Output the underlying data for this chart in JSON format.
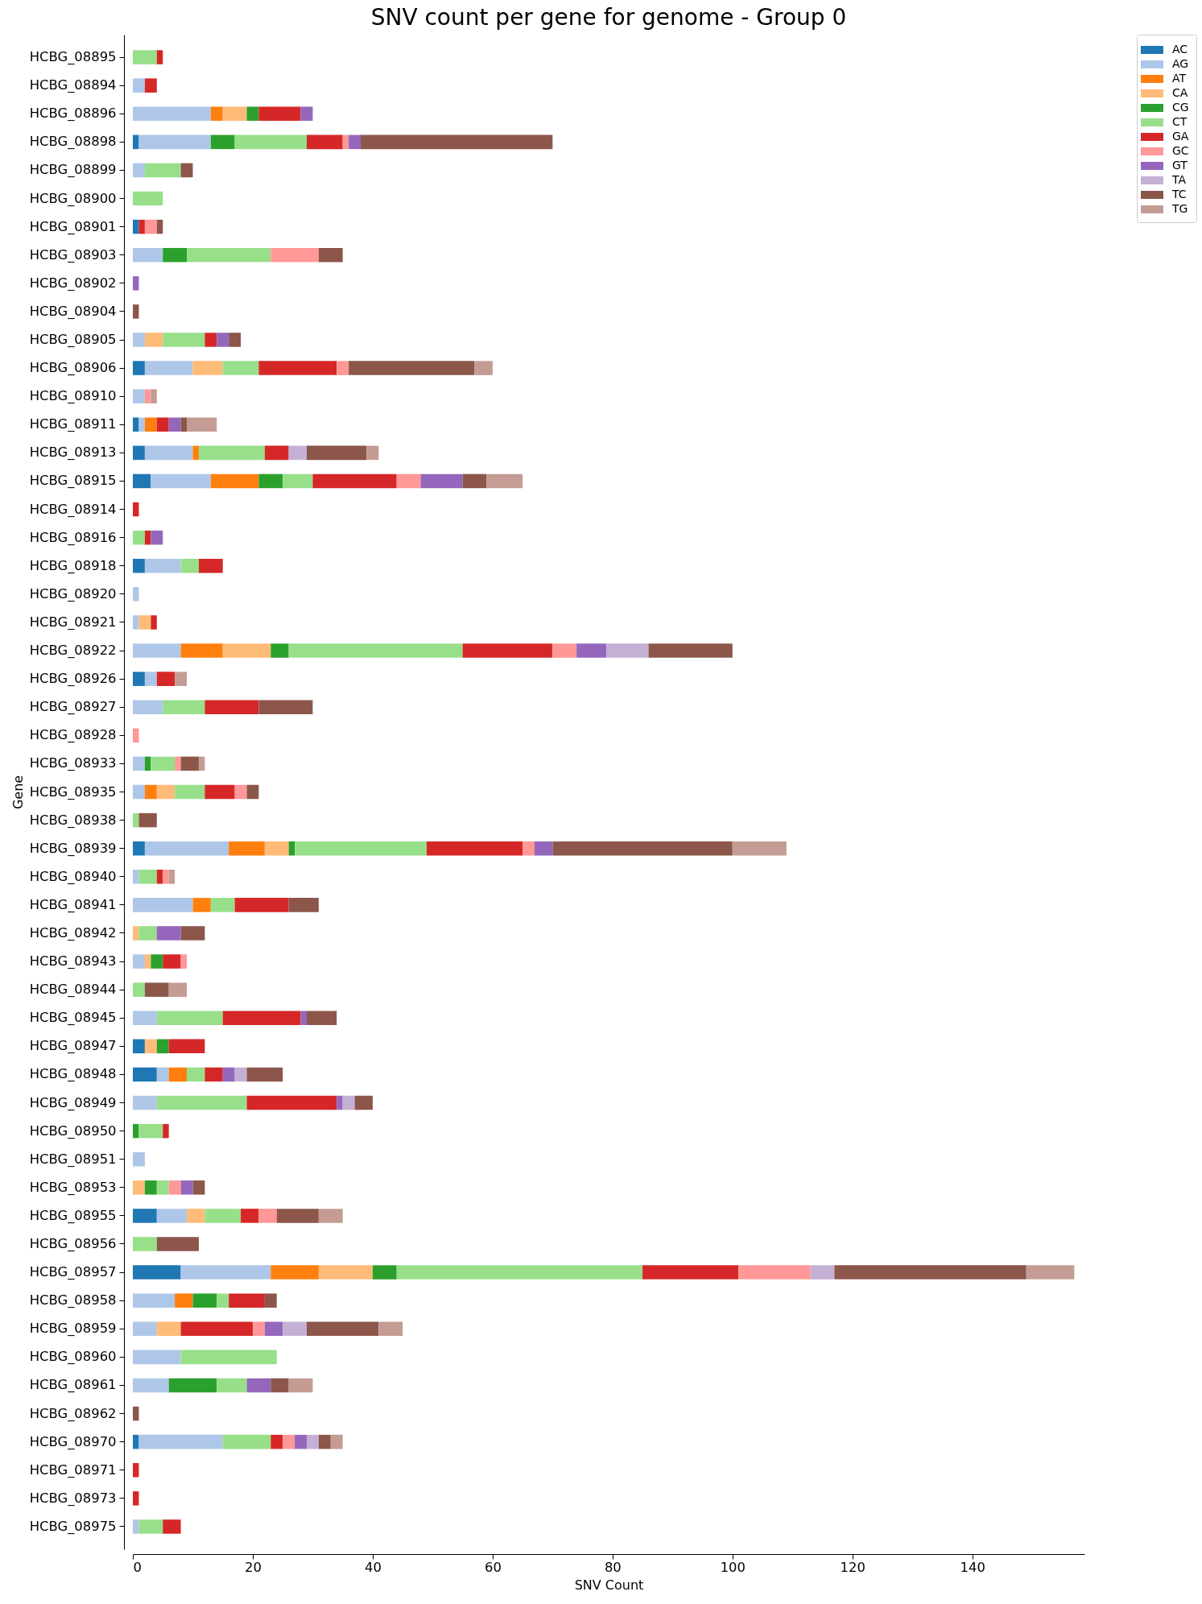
{
  "chart_data": {
    "type": "bar",
    "orientation": "horizontal",
    "stacked": true,
    "title": "SNV count per gene for genome - Group 0",
    "xlabel": "SNV Count",
    "ylabel": "Gene",
    "categories": [
      "HCBG_08895",
      "HCBG_08894",
      "HCBG_08896",
      "HCBG_08898",
      "HCBG_08899",
      "HCBG_08900",
      "HCBG_08901",
      "HCBG_08903",
      "HCBG_08902",
      "HCBG_08904",
      "HCBG_08905",
      "HCBG_08906",
      "HCBG_08910",
      "HCBG_08911",
      "HCBG_08913",
      "HCBG_08915",
      "HCBG_08914",
      "HCBG_08916",
      "HCBG_08918",
      "HCBG_08920",
      "HCBG_08921",
      "HCBG_08922",
      "HCBG_08926",
      "HCBG_08927",
      "HCBG_08928",
      "HCBG_08933",
      "HCBG_08935",
      "HCBG_08938",
      "HCBG_08939",
      "HCBG_08940",
      "HCBG_08941",
      "HCBG_08942",
      "HCBG_08943",
      "HCBG_08944",
      "HCBG_08945",
      "HCBG_08947",
      "HCBG_08948",
      "HCBG_08949",
      "HCBG_08950",
      "HCBG_08951",
      "HCBG_08953",
      "HCBG_08955",
      "HCBG_08956",
      "HCBG_08957",
      "HCBG_08958",
      "HCBG_08959",
      "HCBG_08960",
      "HCBG_08961",
      "HCBG_08962",
      "HCBG_08970",
      "HCBG_08971",
      "HCBG_08973",
      "HCBG_08975"
    ],
    "series": [
      {
        "name": "AC",
        "color": "#1f77b4",
        "values": [
          null,
          null,
          null,
          1,
          null,
          null,
          1,
          null,
          null,
          null,
          null,
          2,
          null,
          1,
          2,
          3,
          null,
          null,
          2,
          null,
          null,
          null,
          2,
          null,
          null,
          null,
          null,
          null,
          2,
          null,
          null,
          null,
          null,
          null,
          null,
          2,
          4,
          null,
          null,
          null,
          null,
          4,
          null,
          8,
          null,
          null,
          null,
          null,
          null,
          1,
          null,
          null,
          null
        ]
      },
      {
        "name": "AG",
        "color": "#aec7e8",
        "values": [
          null,
          2,
          13,
          12,
          2,
          null,
          null,
          5,
          null,
          null,
          2,
          8,
          2,
          1,
          8,
          10,
          null,
          null,
          6,
          1,
          1,
          8,
          2,
          5,
          null,
          2,
          2,
          null,
          14,
          1,
          10,
          null,
          2,
          null,
          4,
          null,
          2,
          4,
          null,
          2,
          null,
          5,
          null,
          15,
          7,
          4,
          8,
          6,
          null,
          14,
          null,
          null,
          1
        ]
      },
      {
        "name": "AT",
        "color": "#ff7f0e",
        "values": [
          null,
          null,
          2,
          null,
          null,
          null,
          null,
          null,
          null,
          null,
          null,
          null,
          null,
          2,
          1,
          8,
          null,
          null,
          null,
          null,
          null,
          7,
          null,
          null,
          null,
          null,
          2,
          null,
          6,
          null,
          3,
          null,
          null,
          null,
          null,
          null,
          3,
          null,
          null,
          null,
          null,
          null,
          null,
          8,
          3,
          null,
          null,
          null,
          null,
          null,
          null,
          null,
          null
        ]
      },
      {
        "name": "CA",
        "color": "#ffbb78",
        "values": [
          null,
          null,
          4,
          null,
          null,
          null,
          null,
          null,
          null,
          null,
          3,
          5,
          null,
          null,
          null,
          null,
          null,
          null,
          null,
          null,
          2,
          8,
          null,
          null,
          null,
          null,
          3,
          null,
          4,
          null,
          null,
          1,
          1,
          null,
          null,
          2,
          null,
          null,
          null,
          null,
          2,
          3,
          null,
          9,
          null,
          4,
          null,
          null,
          null,
          null,
          null,
          null,
          null
        ]
      },
      {
        "name": "CG",
        "color": "#2ca02c",
        "values": [
          null,
          null,
          2,
          4,
          null,
          null,
          null,
          4,
          null,
          null,
          null,
          null,
          null,
          null,
          null,
          4,
          null,
          null,
          null,
          null,
          null,
          3,
          null,
          null,
          null,
          1,
          null,
          null,
          1,
          null,
          null,
          null,
          2,
          null,
          null,
          2,
          null,
          null,
          1,
          null,
          2,
          null,
          null,
          4,
          4,
          null,
          null,
          8,
          null,
          null,
          null,
          null,
          null
        ]
      },
      {
        "name": "CT",
        "color": "#98df8a",
        "values": [
          4,
          null,
          null,
          12,
          6,
          5,
          null,
          14,
          null,
          null,
          7,
          6,
          null,
          null,
          11,
          5,
          null,
          2,
          3,
          null,
          null,
          29,
          null,
          7,
          null,
          4,
          5,
          1,
          22,
          3,
          4,
          3,
          null,
          2,
          11,
          null,
          3,
          15,
          4,
          null,
          2,
          6,
          4,
          41,
          2,
          null,
          16,
          5,
          null,
          8,
          null,
          null,
          4
        ]
      },
      {
        "name": "GA",
        "color": "#d62728",
        "values": [
          1,
          2,
          7,
          6,
          null,
          null,
          1,
          null,
          null,
          null,
          2,
          13,
          null,
          2,
          4,
          14,
          1,
          1,
          4,
          null,
          1,
          15,
          3,
          9,
          null,
          null,
          5,
          null,
          16,
          1,
          9,
          null,
          3,
          null,
          13,
          6,
          3,
          15,
          1,
          null,
          null,
          3,
          null,
          16,
          6,
          12,
          null,
          null,
          null,
          2,
          1,
          1,
          3
        ]
      },
      {
        "name": "GC",
        "color": "#ff9896",
        "values": [
          null,
          null,
          null,
          1,
          null,
          null,
          2,
          8,
          null,
          null,
          null,
          2,
          1,
          null,
          null,
          4,
          null,
          null,
          null,
          null,
          null,
          4,
          null,
          null,
          1,
          1,
          2,
          null,
          2,
          1,
          null,
          null,
          1,
          null,
          null,
          null,
          null,
          null,
          null,
          null,
          2,
          3,
          null,
          12,
          null,
          2,
          null,
          null,
          null,
          2,
          null,
          null,
          null
        ]
      },
      {
        "name": "GT",
        "color": "#9467bd",
        "values": [
          null,
          null,
          2,
          2,
          null,
          null,
          null,
          null,
          1,
          null,
          2,
          null,
          null,
          2,
          null,
          7,
          null,
          2,
          null,
          null,
          null,
          5,
          null,
          null,
          null,
          null,
          null,
          null,
          3,
          null,
          null,
          4,
          null,
          null,
          1,
          null,
          2,
          1,
          null,
          null,
          2,
          null,
          null,
          null,
          null,
          3,
          null,
          4,
          null,
          2,
          null,
          null,
          null
        ]
      },
      {
        "name": "TA",
        "color": "#c5b0d5",
        "values": [
          null,
          null,
          null,
          null,
          null,
          null,
          null,
          null,
          null,
          null,
          null,
          null,
          null,
          null,
          3,
          null,
          null,
          null,
          null,
          null,
          null,
          7,
          null,
          null,
          null,
          null,
          null,
          null,
          null,
          null,
          null,
          null,
          null,
          null,
          null,
          null,
          2,
          2,
          null,
          null,
          null,
          null,
          null,
          4,
          null,
          4,
          null,
          null,
          null,
          2,
          null,
          null,
          null
        ]
      },
      {
        "name": "TC",
        "color": "#8c564b",
        "values": [
          null,
          null,
          null,
          32,
          2,
          null,
          1,
          4,
          null,
          1,
          2,
          21,
          null,
          1,
          10,
          4,
          null,
          null,
          null,
          null,
          null,
          14,
          null,
          9,
          null,
          3,
          2,
          3,
          30,
          null,
          5,
          4,
          null,
          4,
          5,
          null,
          6,
          3,
          null,
          null,
          2,
          7,
          7,
          32,
          2,
          12,
          null,
          3,
          1,
          2,
          null,
          null,
          null
        ]
      },
      {
        "name": "TG",
        "color": "#c49c94",
        "values": [
          null,
          null,
          null,
          null,
          null,
          null,
          null,
          null,
          null,
          null,
          null,
          3,
          1,
          5,
          2,
          6,
          null,
          null,
          null,
          null,
          null,
          null,
          2,
          null,
          null,
          1,
          null,
          null,
          9,
          1,
          null,
          null,
          null,
          3,
          null,
          null,
          null,
          null,
          null,
          null,
          null,
          4,
          null,
          8,
          null,
          4,
          null,
          4,
          null,
          2,
          null,
          null,
          null
        ]
      }
    ],
    "xlim": [
      0,
      158.7
    ],
    "xticks": [
      0,
      20,
      40,
      60,
      80,
      100,
      120,
      140
    ],
    "legend": "top right"
  }
}
